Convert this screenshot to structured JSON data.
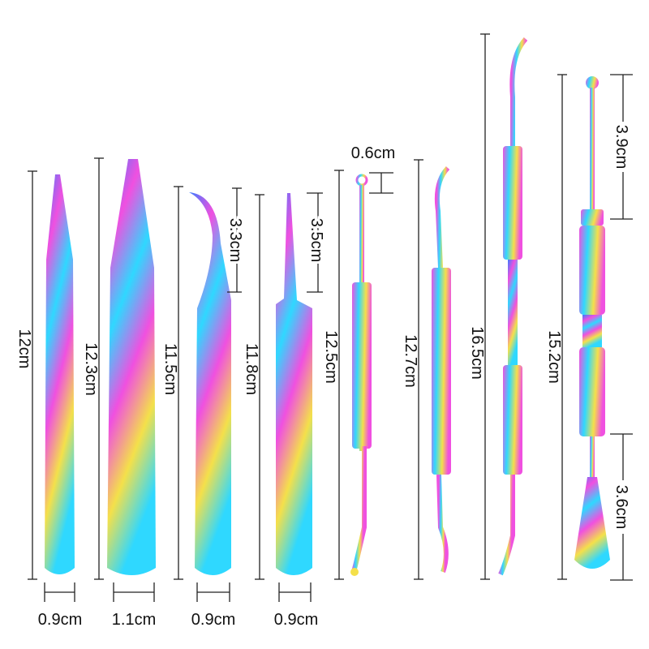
{
  "tools": [
    {
      "name": "straight-tweezers",
      "length_label": "12cm",
      "width_label": "0.9cm"
    },
    {
      "name": "wide-tweezers",
      "length_label": "12.3cm",
      "width_label": "1.1cm"
    },
    {
      "name": "curved-tweezers",
      "length_label": "11.5cm",
      "tip_label": "3.3cm",
      "width_label": "0.9cm"
    },
    {
      "name": "fine-point-tweezers",
      "length_label": "11.8cm",
      "tip_label": "3.5cm",
      "width_label": "0.9cm"
    },
    {
      "name": "loop-pusher",
      "length_label": "12.5cm",
      "tip_label": "0.6cm"
    },
    {
      "name": "double-ended-pusher",
      "length_label": "12.7cm"
    },
    {
      "name": "long-pusher",
      "length_label": "16.5cm"
    },
    {
      "name": "spoon-spatula-pusher",
      "length_label": "15.2cm",
      "top_label": "3.9cm",
      "bottom_label": "3.6cm"
    }
  ],
  "colors": {
    "cyan": "#2fd8ff",
    "magenta": "#f050e0",
    "yellow": "#f4e04a",
    "blue": "#3a7cff",
    "line": "#222222"
  }
}
